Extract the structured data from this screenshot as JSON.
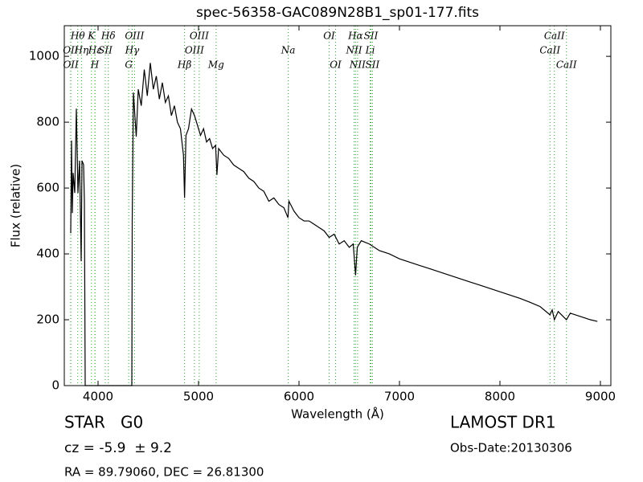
{
  "chart_data": {
    "type": "line",
    "title": "spec-56358-GAC089N28B1_sp01-177.fits",
    "xlabel": "Wavelength (Å)",
    "ylabel": "Flux (relative)",
    "xlim": [
      3664,
      9104
    ],
    "ylim": [
      0,
      1093
    ],
    "xticks": [
      4000,
      5000,
      6000,
      7000,
      8000,
      9000
    ],
    "yticks": [
      0,
      200,
      400,
      600,
      800,
      1000
    ],
    "color": "#000000",
    "line_color": "#2ca02c",
    "x": [
      3728,
      3736,
      3744,
      3752,
      3768,
      3784,
      3800,
      3816,
      3832,
      3840,
      3856,
      3864,
      3872,
      3880,
      4000,
      4100,
      4200,
      4300,
      4336,
      4340,
      4352,
      4380,
      4400,
      4430,
      4460,
      4490,
      4520,
      4550,
      4580,
      4610,
      4640,
      4670,
      4700,
      4730,
      4760,
      4790,
      4820,
      4850,
      4861,
      4875,
      4900,
      4930,
      4960,
      4990,
      5020,
      5050,
      5080,
      5110,
      5140,
      5170,
      5183,
      5200,
      5250,
      5300,
      5350,
      5400,
      5450,
      5500,
      5550,
      5600,
      5650,
      5700,
      5750,
      5800,
      5850,
      5890,
      5900,
      5950,
      6000,
      6050,
      6100,
      6150,
      6200,
      6250,
      6300,
      6350,
      6400,
      6450,
      6500,
      6540,
      6563,
      6580,
      6620,
      6700,
      6800,
      6900,
      7000,
      7100,
      7200,
      7300,
      7400,
      7500,
      7600,
      7700,
      7800,
      7900,
      8000,
      8100,
      8200,
      8300,
      8400,
      8498,
      8520,
      8542,
      8580,
      8662,
      8700,
      8800,
      8900,
      8970
    ],
    "values": [
      463,
      744,
      524,
      646,
      585,
      841,
      585,
      683,
      378,
      683,
      671,
      561,
      0,
      0,
      0,
      0,
      0,
      0,
      0,
      500,
      890,
      756,
      900,
      850,
      960,
      880,
      980,
      900,
      940,
      870,
      920,
      860,
      880,
      820,
      850,
      800,
      780,
      700,
      570,
      760,
      780,
      840,
      820,
      790,
      760,
      780,
      740,
      750,
      720,
      730,
      640,
      720,
      700,
      690,
      670,
      660,
      650,
      630,
      620,
      600,
      590,
      560,
      570,
      550,
      540,
      510,
      560,
      530,
      510,
      500,
      500,
      490,
      480,
      470,
      450,
      460,
      430,
      440,
      420,
      430,
      335,
      420,
      440,
      430,
      410,
      400,
      385,
      375,
      365,
      355,
      345,
      335,
      325,
      315,
      305,
      295,
      285,
      275,
      265,
      253,
      240,
      215,
      230,
      200,
      225,
      200,
      220,
      210,
      200,
      195
    ],
    "line_labels": [
      [
        {
          "x": 3798,
          "label": "Hθ"
        },
        {
          "x": 3934,
          "label": "K"
        },
        {
          "x": 4102,
          "label": "Hδ"
        },
        {
          "x": 4363,
          "label": "OIII"
        },
        {
          "x": 5007,
          "label": "OIII"
        },
        {
          "x": 6300,
          "label": "OI"
        },
        {
          "x": 6563,
          "label": "Hα"
        },
        {
          "x": 6716,
          "label": "SII"
        },
        {
          "x": 8542,
          "label": "CaII"
        }
      ],
      [
        {
          "x": 3727,
          "label": "OII"
        },
        {
          "x": 3835,
          "label": "Hη"
        },
        {
          "x": 3970,
          "label": "Hε"
        },
        {
          "x": 4072,
          "label": "SII"
        },
        {
          "x": 4340,
          "label": "Hγ"
        },
        {
          "x": 4959,
          "label": "OIII"
        },
        {
          "x": 5893,
          "label": "Na"
        },
        {
          "x": 6548,
          "label": "NII"
        },
        {
          "x": 6708,
          "label": "Li"
        },
        {
          "x": 8498,
          "label": "CaII"
        }
      ],
      [
        {
          "x": 3729,
          "label": "OII"
        },
        {
          "x": 3968,
          "label": "H"
        },
        {
          "x": 4305,
          "label": "G"
        },
        {
          "x": 4861,
          "label": "Hβ"
        },
        {
          "x": 5175,
          "label": "Mg"
        },
        {
          "x": 6364,
          "label": "OI"
        },
        {
          "x": 6583,
          "label": "NII"
        },
        {
          "x": 6731,
          "label": "SII"
        },
        {
          "x": 8662,
          "label": "CaII"
        }
      ]
    ],
    "object_class": "STAR   G0",
    "redshift": "cz = -5.9  ± 9.2",
    "coordinates": "RA = 89.79060, DEC = 26.81300",
    "survey": "LAMOST DR1",
    "obs_date": "Obs-Date:20130306"
  }
}
